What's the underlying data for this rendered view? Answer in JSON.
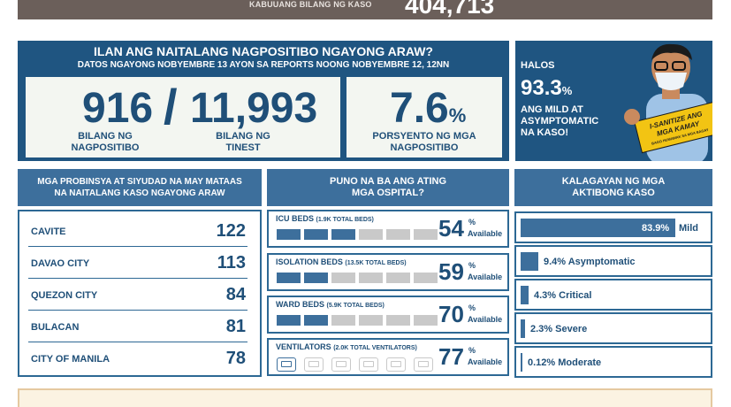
{
  "top_banner": {
    "label": "KABUUANG BILANG NG KASO",
    "value": "404,713"
  },
  "hero": {
    "title": "ILAN ANG NAITALANG NAGPOSITIBO NGAYONG ARAW?",
    "subtitle": "DATOS NGAYONG NOBYEMBRE 13 AYON SA REPORTS NOONG NOBYEMBRE 12, 12NN",
    "positive": "916",
    "slash": "/",
    "tested": "11,993",
    "positive_label_1": "BILANG NG",
    "positive_label_2": "NAGPOSITIBO",
    "tested_label_1": "BILANG NG",
    "tested_label_2": "TINEST",
    "rate": "7.6",
    "rate_sign": "%",
    "rate_label_1": "PORSYENTO NG MGA",
    "rate_label_2": "NAGPOSITIBO"
  },
  "promo": {
    "line1": "HALOS",
    "value": "93.3",
    "value_sign": "%",
    "line2": "ANG MILD AT",
    "line3": "ASYMPTOMATIC",
    "line4": "NA KASO!",
    "sign_text_1": "I-SANITIZE ANG",
    "sign_text_2": "MGA KAMAY",
    "sign_text_3": "BAGO HUMAWAK SA MGA BAGAY",
    "colors": {
      "skin": "#c98a5e",
      "shirt": "#9fc3e6",
      "sign": "#f2c413"
    }
  },
  "provinces": {
    "header_1": "MGA PROBINSYA AT SIYUDAD NA MAY MATAAS",
    "header_2": "NA NAITALANG KASO NGAYONG ARAW",
    "rows": [
      {
        "name": "CAVITE",
        "value": "122"
      },
      {
        "name": "DAVAO CITY",
        "value": "113"
      },
      {
        "name": "QUEZON CITY",
        "value": "84"
      },
      {
        "name": "BULACAN",
        "value": "81"
      },
      {
        "name": "CITY OF MANILA",
        "value": "78"
      }
    ]
  },
  "hospitals": {
    "header_1": "PUNO NA BA ANG ATING",
    "header_2": "MGA OSPITAL?",
    "available_label": "Available",
    "pct_sign": "%",
    "items": [
      {
        "name": "ICU BEDS",
        "total": "(1.9K TOTAL BEDS)",
        "pct": "54",
        "filled": 0.46,
        "icon": "bed-icon"
      },
      {
        "name": "ISOLATION BEDS",
        "total": "(13.5K TOTAL BEDS)",
        "pct": "59",
        "filled": 0.41,
        "icon": "bed-icon"
      },
      {
        "name": "WARD BEDS",
        "total": "(5.9K TOTAL BEDS)",
        "pct": "70",
        "filled": 0.3,
        "icon": "bed-icon"
      },
      {
        "name": "VENTILATORS",
        "total": "(2.0K TOTAL VENTILATORS)",
        "pct": "77",
        "filled": 0.23,
        "icon": "ventilator-icon"
      }
    ],
    "colors": {
      "used": "#3d6f9c",
      "free": "#c9c9c9"
    }
  },
  "active_cases": {
    "header_1": "KALAGAYAN NG MGA",
    "header_2": "AKTIBONG KASO",
    "items": [
      {
        "pct": "83.9%",
        "label": "Mild",
        "value": 83.9
      },
      {
        "pct": "9.4%",
        "label": "Asymptomatic",
        "value": 9.4
      },
      {
        "pct": "4.3%",
        "label": "Critical",
        "value": 4.3
      },
      {
        "pct": "2.3%",
        "label": "Severe",
        "value": 2.3
      },
      {
        "pct": "0.12%",
        "label": "Moderate",
        "value": 0.12
      }
    ]
  },
  "colors": {
    "navy": "#1f5581",
    "accent": "#3d6f9c",
    "text": "#1f4f78",
    "banner": "#6b5f5a"
  }
}
